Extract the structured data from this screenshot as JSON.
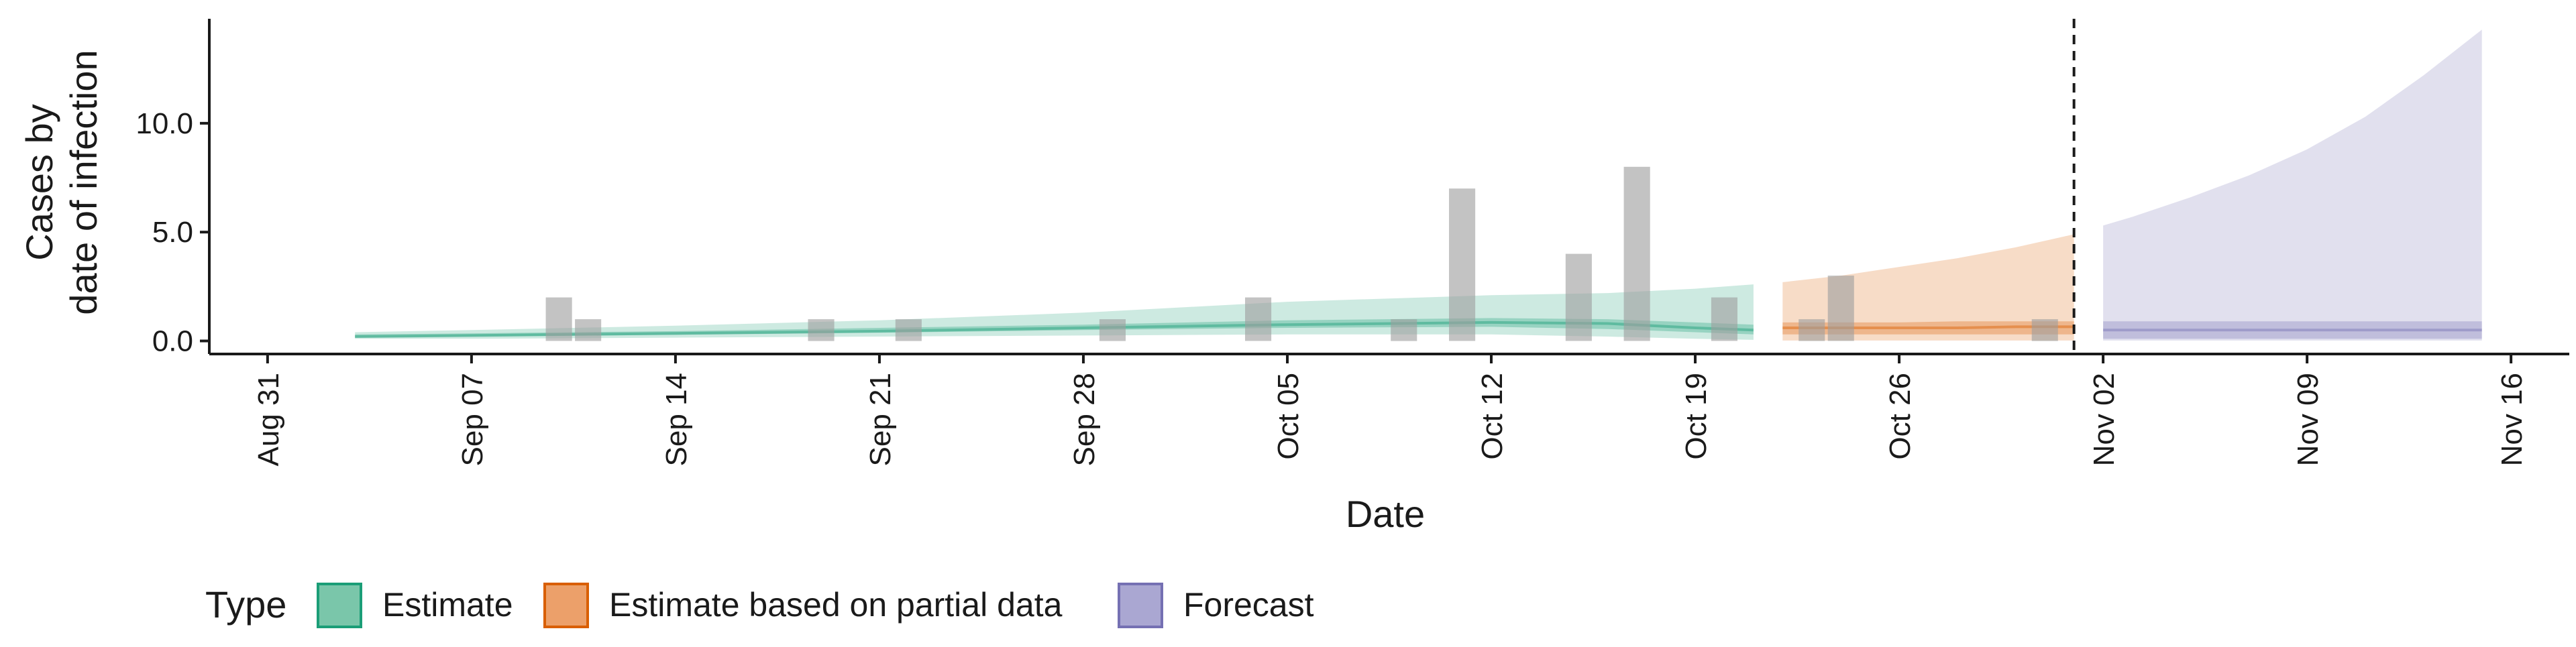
{
  "chart_data": {
    "type": "area",
    "xlabel": "Date",
    "ylabel_lines": [
      "Cases by",
      "date of infection"
    ],
    "xlim": [
      "2020-08-29",
      "2020-11-18"
    ],
    "ylim": [
      -0.6,
      14.8
    ],
    "yticks": [
      0.0,
      5.0,
      10.0
    ],
    "ytick_labels": [
      "0.0",
      "5.0",
      "10.0"
    ],
    "xticks": [
      {
        "date": "2020-08-31",
        "label": "Aug 31"
      },
      {
        "date": "2020-09-07",
        "label": "Sep 07"
      },
      {
        "date": "2020-09-14",
        "label": "Sep 14"
      },
      {
        "date": "2020-09-21",
        "label": "Sep 21"
      },
      {
        "date": "2020-09-28",
        "label": "Sep 28"
      },
      {
        "date": "2020-10-05",
        "label": "Oct 05"
      },
      {
        "date": "2020-10-12",
        "label": "Oct 12"
      },
      {
        "date": "2020-10-19",
        "label": "Oct 19"
      },
      {
        "date": "2020-10-26",
        "label": "Oct 26"
      },
      {
        "date": "2020-11-02",
        "label": "Nov 02"
      },
      {
        "date": "2020-11-09",
        "label": "Nov 09"
      },
      {
        "date": "2020-11-16",
        "label": "Nov 16"
      }
    ],
    "grid": false,
    "legend": {
      "position": "bottom-left",
      "title": "Type",
      "entries": [
        {
          "key": "estimate",
          "label": "Estimate",
          "fill": "#7ac6aa",
          "stroke": "#1b9e77"
        },
        {
          "key": "partial",
          "label": "Estimate based on partial data",
          "fill": "#eca06a",
          "stroke": "#d95f02"
        },
        {
          "key": "forecast",
          "label": "Forecast",
          "fill": "#aaa7d2",
          "stroke": "#7570b3"
        }
      ]
    },
    "reported_cases_bars": [
      {
        "date": "2020-09-10",
        "value": 2
      },
      {
        "date": "2020-09-11",
        "value": 1
      },
      {
        "date": "2020-09-19",
        "value": 1
      },
      {
        "date": "2020-09-22",
        "value": 1
      },
      {
        "date": "2020-09-29",
        "value": 1
      },
      {
        "date": "2020-10-04",
        "value": 2
      },
      {
        "date": "2020-10-09",
        "value": 1
      },
      {
        "date": "2020-10-11",
        "value": 7
      },
      {
        "date": "2020-10-15",
        "value": 4
      },
      {
        "date": "2020-10-17",
        "value": 8
      },
      {
        "date": "2020-10-20",
        "value": 2
      },
      {
        "date": "2020-10-23",
        "value": 1
      },
      {
        "date": "2020-10-24",
        "value": 3
      },
      {
        "date": "2020-10-31",
        "value": 1
      }
    ],
    "bar_color": "#9e9e9e",
    "cutoff_date": "2020-11-01",
    "series": [
      {
        "name": "Estimate",
        "color": "#1b9e77",
        "x": [
          "2020-09-03",
          "2020-09-07",
          "2020-09-14",
          "2020-09-21",
          "2020-09-28",
          "2020-10-05",
          "2020-10-12",
          "2020-10-16",
          "2020-10-19",
          "2020-10-21"
        ],
        "median": [
          0.2,
          0.25,
          0.35,
          0.45,
          0.6,
          0.75,
          0.85,
          0.8,
          0.6,
          0.5
        ],
        "lower_50": [
          0.15,
          0.2,
          0.28,
          0.38,
          0.5,
          0.6,
          0.65,
          0.55,
          0.4,
          0.3
        ],
        "upper_50": [
          0.3,
          0.35,
          0.45,
          0.6,
          0.75,
          0.95,
          1.05,
          1.0,
          0.85,
          0.75
        ],
        "lower_90": [
          0.1,
          0.1,
          0.15,
          0.2,
          0.25,
          0.3,
          0.3,
          0.2,
          0.1,
          0.05
        ],
        "upper_90": [
          0.4,
          0.5,
          0.7,
          0.95,
          1.3,
          1.8,
          2.1,
          2.2,
          2.4,
          2.6
        ]
      },
      {
        "name": "Estimate based on partial data",
        "color": "#d95f02",
        "x": [
          "2020-10-22",
          "2020-10-24",
          "2020-10-26",
          "2020-10-28",
          "2020-10-30",
          "2020-11-01"
        ],
        "median": [
          0.6,
          0.6,
          0.6,
          0.6,
          0.65,
          0.65
        ],
        "lower_50": [
          0.3,
          0.3,
          0.3,
          0.3,
          0.3,
          0.3
        ],
        "upper_50": [
          0.85,
          0.85,
          0.85,
          0.9,
          0.9,
          0.9
        ],
        "lower_90": [
          0.02,
          0.02,
          0.02,
          0.02,
          0.02,
          0.02
        ],
        "upper_90": [
          2.7,
          3.0,
          3.4,
          3.8,
          4.3,
          4.9
        ]
      },
      {
        "name": "Forecast",
        "color": "#7570b3",
        "x": [
          "2020-11-02",
          "2020-11-03",
          "2020-11-05",
          "2020-11-07",
          "2020-11-09",
          "2020-11-11",
          "2020-11-13",
          "2020-11-15"
        ],
        "median": [
          0.5,
          0.5,
          0.5,
          0.5,
          0.5,
          0.5,
          0.5,
          0.5
        ],
        "lower_50": [
          0.1,
          0.1,
          0.1,
          0.1,
          0.1,
          0.1,
          0.1,
          0.1
        ],
        "upper_50": [
          0.9,
          0.9,
          0.9,
          0.9,
          0.9,
          0.9,
          0.9,
          0.9
        ],
        "lower_90": [
          0.02,
          0.02,
          0.02,
          0.02,
          0.02,
          0.02,
          0.02,
          0.02
        ],
        "upper_90": [
          5.3,
          5.7,
          6.6,
          7.6,
          8.8,
          10.3,
          12.2,
          14.3
        ]
      }
    ]
  }
}
